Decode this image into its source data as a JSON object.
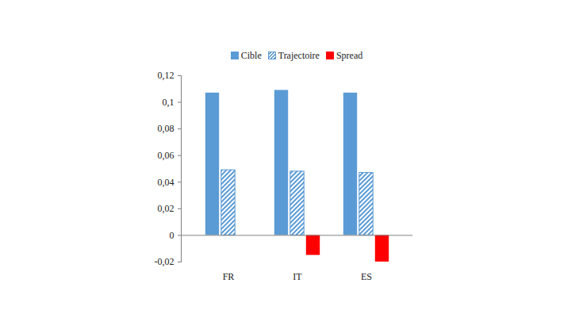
{
  "chart_data": {
    "type": "bar",
    "categories": [
      "FR",
      "IT",
      "ES"
    ],
    "series": [
      {
        "name": "Cible",
        "color": "#5b9bd5",
        "values": [
          0.107,
          0.109,
          0.107
        ]
      },
      {
        "name": "Trajectoire",
        "color": "#5b9bd5",
        "line_style": "hatched",
        "values": [
          0.049,
          0.048,
          0.047
        ]
      },
      {
        "name": "Spread",
        "color": "#ff0000",
        "values": [
          0,
          -0.015,
          -0.02
        ]
      }
    ],
    "ylim": [
      -0.02,
      0.12
    ],
    "yticks": [
      {
        "value": -0.02,
        "label": "-0,02"
      },
      0,
      {
        "value": 0.02,
        "label": "0,02"
      },
      {
        "value": 0.04,
        "label": "0,04"
      },
      {
        "value": 0.06,
        "label": "0,06"
      },
      {
        "value": 0.08,
        "label": "0,08"
      },
      {
        "value": 0.1,
        "label": "0,1"
      },
      {
        "value": 0.12,
        "label": "0,12"
      }
    ],
    "grid": false,
    "legend": "top"
  }
}
